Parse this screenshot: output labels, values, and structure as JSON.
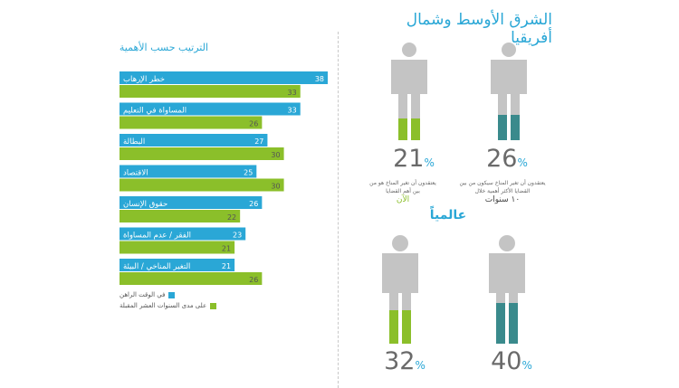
{
  "region_title": "الشرق الأوسط وشمال أفريقيا",
  "global_title": "عالمياً",
  "ranking_chart": {
    "title": "الترتيب حسب الأهمية",
    "colors": {
      "current": "#2aa7d6",
      "decade": "#8bbf2a"
    },
    "legend": {
      "current": "في الوقت الراهن",
      "decade": "على مدى السنوات العشر المقبلة"
    }
  },
  "chart_data": {
    "type": "bar",
    "title": "الترتيب حسب الأهمية",
    "categories": [
      "خطر الإرهاب",
      "المساواة في التعليم",
      "البطالة",
      "الاقتصاد",
      "حقوق الإنسان",
      "الفقر / عدم المساواة",
      "التغير المناخي / البيئة"
    ],
    "series": [
      {
        "name": "في الوقت الراهن",
        "values": [
          38,
          33,
          27,
          25,
          26,
          23,
          21
        ]
      },
      {
        "name": "على مدى السنوات العشر المقبلة",
        "values": [
          33,
          26,
          30,
          30,
          22,
          21,
          26
        ]
      }
    ],
    "xlim": [
      0,
      38
    ]
  },
  "figures": [
    {
      "pct": "21",
      "pct_sign": "%",
      "caption": "يعتقدون أن تغير المناخ هو من بين أهم القضايا",
      "emphasis": "الآن",
      "legs": "green",
      "emphasis_color": "green"
    },
    {
      "pct": "26",
      "pct_sign": "%",
      "caption": "يعتقدون أن تغير المناخ سيكون من بين القضايا الأكثر أهمية خلال",
      "emphasis": "١٠ سنوات",
      "legs": "teal",
      "emphasis_color": "dark"
    },
    {
      "pct": "32",
      "pct_sign": "%",
      "caption": "",
      "emphasis": "",
      "legs": "green",
      "emphasis_color": "green"
    },
    {
      "pct": "40",
      "pct_sign": "%",
      "caption": "",
      "emphasis": "",
      "legs": "teal",
      "emphasis_color": "dark"
    }
  ]
}
